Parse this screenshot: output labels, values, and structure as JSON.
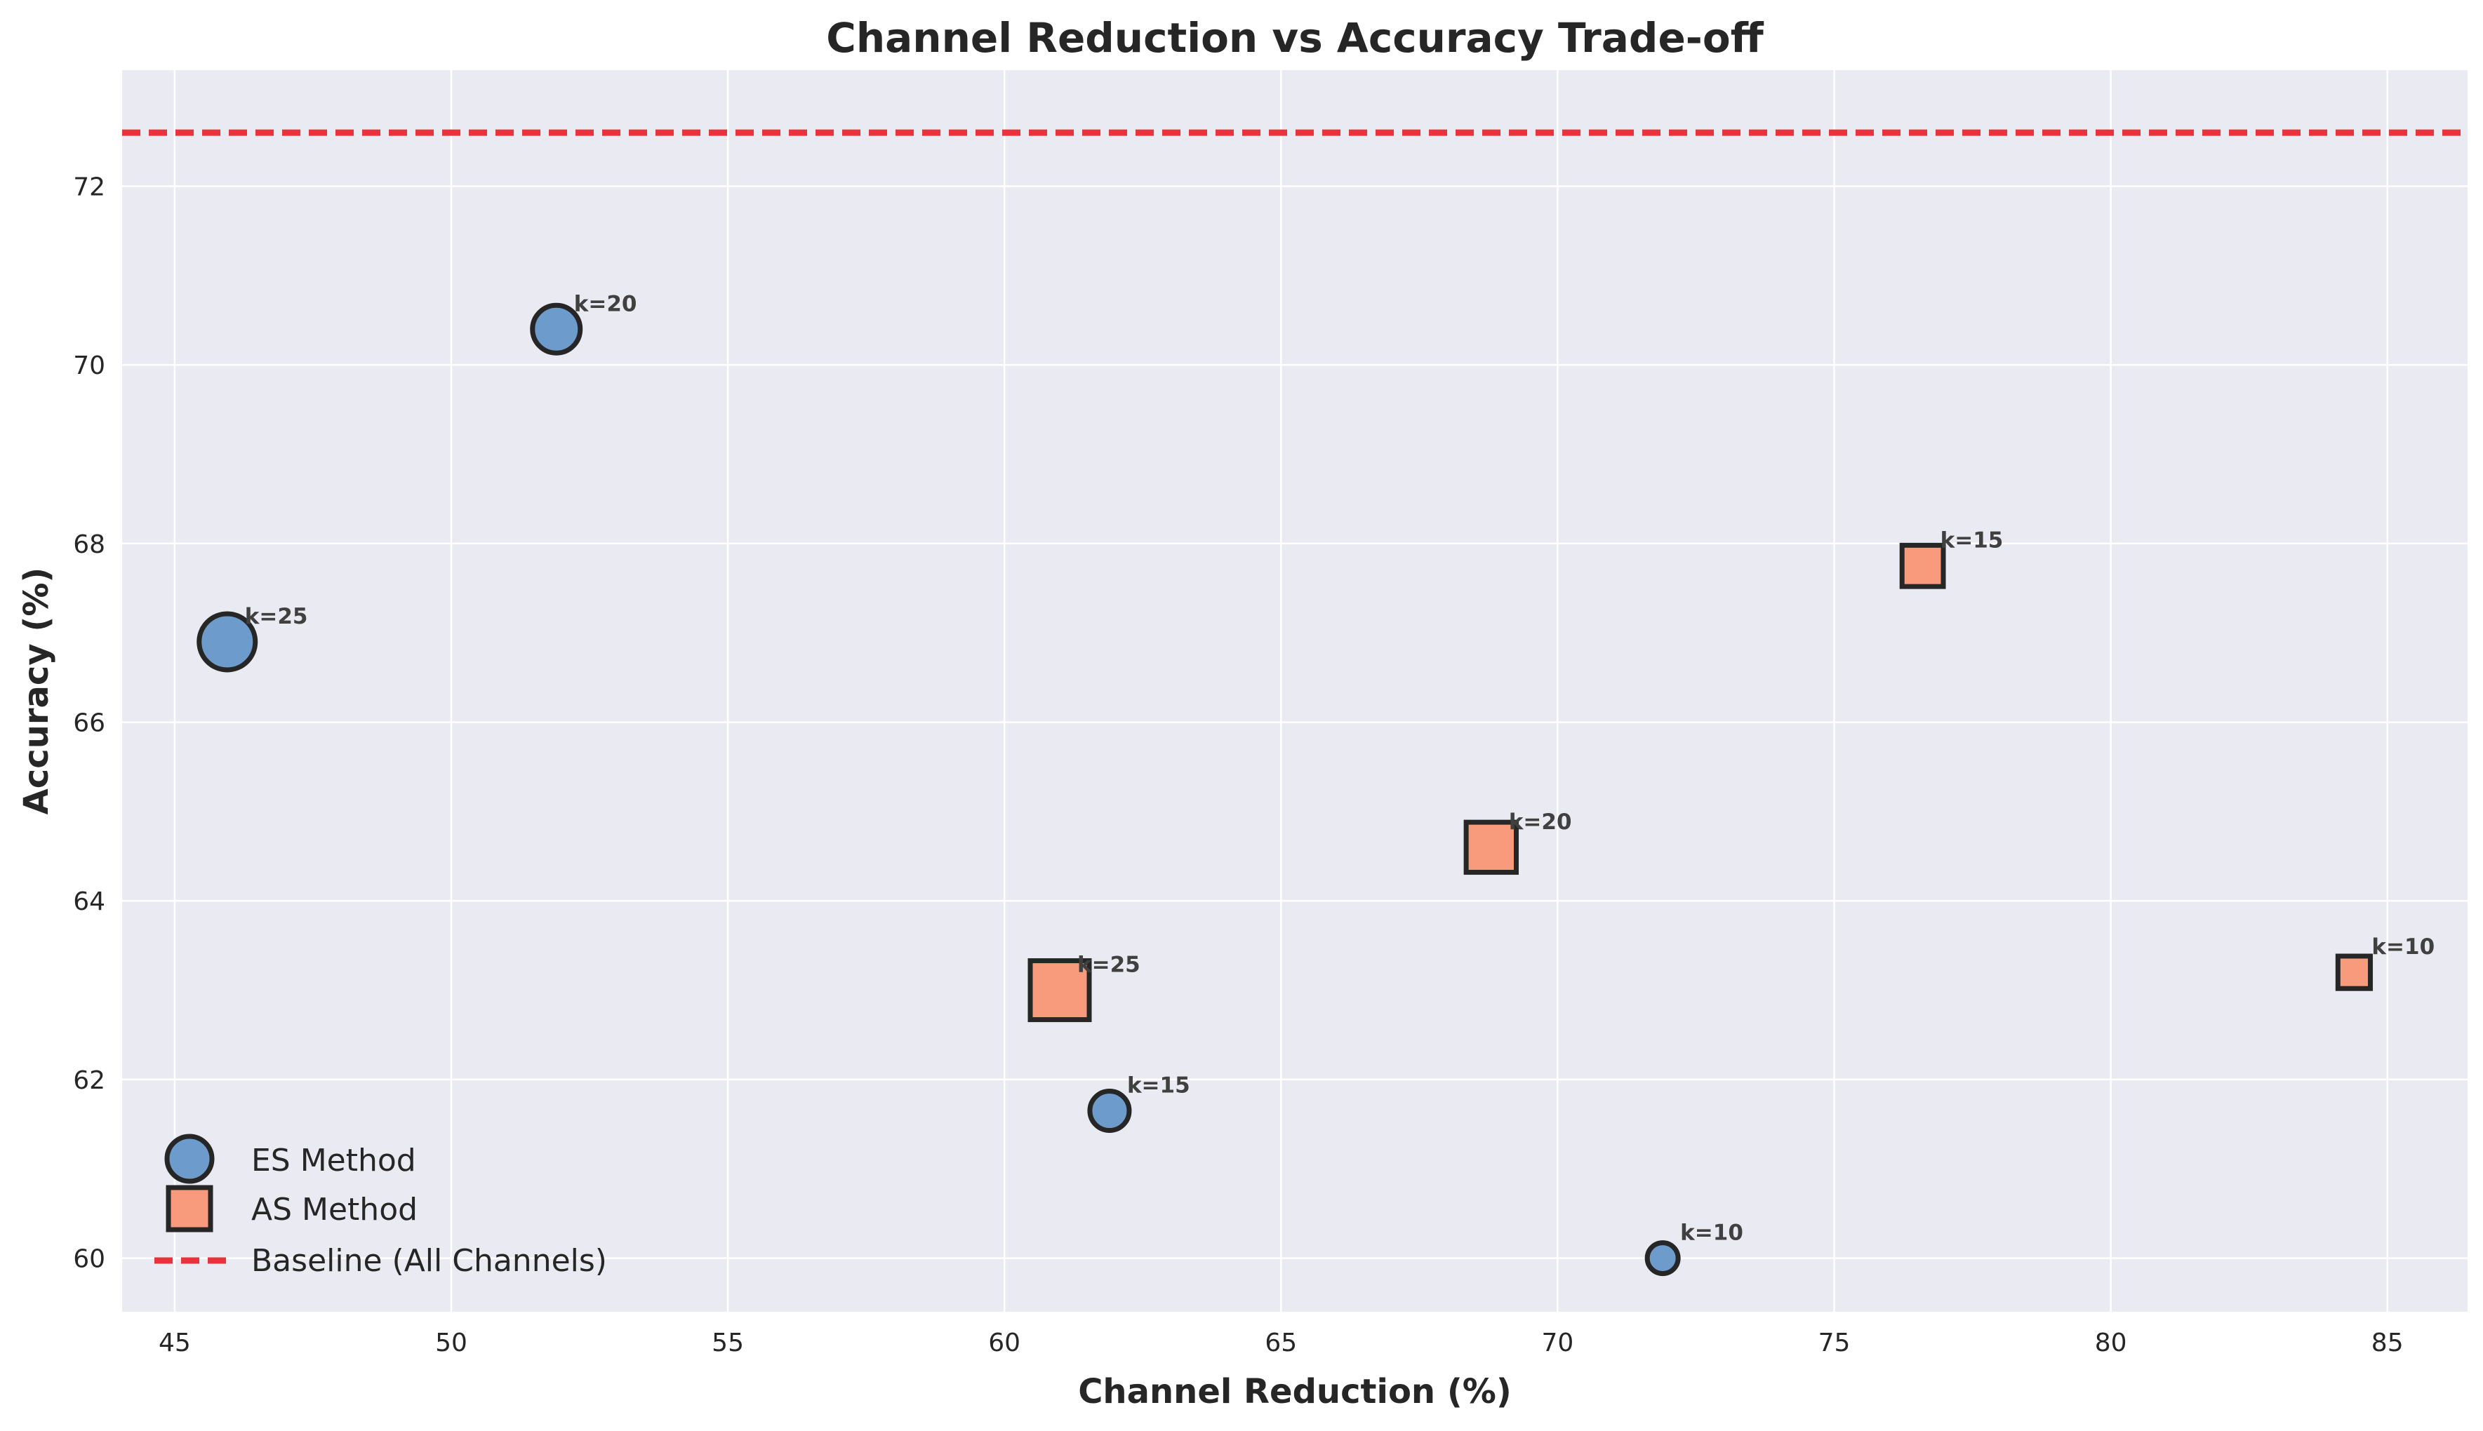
{
  "chart_data": {
    "type": "scatter",
    "title": "Channel Reduction vs Accuracy Trade-off",
    "xlabel": "Channel Reduction (%)",
    "ylabel": "Accuracy (%)",
    "xlim": [
      44.05,
      86.45
    ],
    "ylim": [
      59.4,
      73.3
    ],
    "x_ticks": [
      45,
      50,
      55,
      60,
      65,
      70,
      75,
      80,
      85
    ],
    "y_ticks": [
      60,
      62,
      64,
      66,
      68,
      70,
      72
    ],
    "grid": true,
    "legend_position": "lower-left",
    "baseline": {
      "name": "Baseline (All Channels)",
      "value": 72.6,
      "color": "#e8333c"
    },
    "series": [
      {
        "name": "ES Method",
        "marker": "circle",
        "color": "#6d9bcc",
        "points": [
          {
            "k": 10,
            "x": 71.9,
            "y": 60.0,
            "label": "k=10"
          },
          {
            "k": 15,
            "x": 61.9,
            "y": 61.65,
            "label": "k=15"
          },
          {
            "k": 20,
            "x": 51.9,
            "y": 70.4,
            "label": "k=20"
          },
          {
            "k": 25,
            "x": 45.95,
            "y": 66.9,
            "label": "k=25"
          }
        ]
      },
      {
        "name": "AS Method",
        "marker": "square",
        "color": "#f79b7c",
        "points": [
          {
            "k": 10,
            "x": 84.4,
            "y": 63.2,
            "label": "k=10"
          },
          {
            "k": 15,
            "x": 76.6,
            "y": 67.75,
            "label": "k=15"
          },
          {
            "k": 20,
            "x": 68.8,
            "y": 64.6,
            "label": "k=20"
          },
          {
            "k": 25,
            "x": 61.0,
            "y": 63.0,
            "label": "k=25"
          }
        ]
      }
    ]
  }
}
